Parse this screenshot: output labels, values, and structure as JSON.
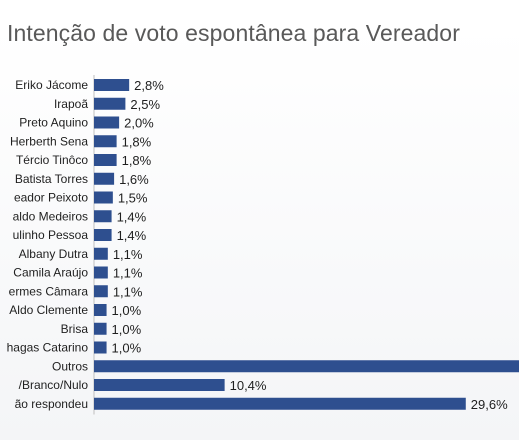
{
  "chart_data": {
    "type": "bar",
    "orientation": "horizontal",
    "title": "Intenção de voto espontânea para Vereador",
    "xlabel": "",
    "ylabel": "",
    "categories": [
      "Eriko Jácome",
      "Irapoã",
      "Preto Aquino",
      "Herberth Sena",
      "Tércio Tinôco",
      "Batista Torres",
      "eador Peixoto",
      "aldo Medeiros",
      "ulinho Pessoa",
      "Albany Dutra",
      "Camila Araújo",
      "ermes Câmara",
      "Aldo Clemente",
      "Brisa",
      "hagas Catarino",
      "Outros",
      "/Branco/Nulo",
      "ão respondeu"
    ],
    "values": [
      2.8,
      2.5,
      2.0,
      1.8,
      1.8,
      1.6,
      1.5,
      1.4,
      1.4,
      1.1,
      1.1,
      1.1,
      1.0,
      1.0,
      1.0,
      40.0,
      10.4,
      29.6
    ],
    "labels": [
      "2,8%",
      "2,5%",
      "2,0%",
      "1,8%",
      "1,8%",
      "1,6%",
      "1,5%",
      "1,4%",
      "1,4%",
      "1,1%",
      "1,1%",
      "1,1%",
      "1,0%",
      "1,0%",
      "1,0%",
      "",
      "10,4%",
      "29,6%"
    ],
    "bar_color": "#2e4f8f",
    "grid": false,
    "legend": "none"
  }
}
